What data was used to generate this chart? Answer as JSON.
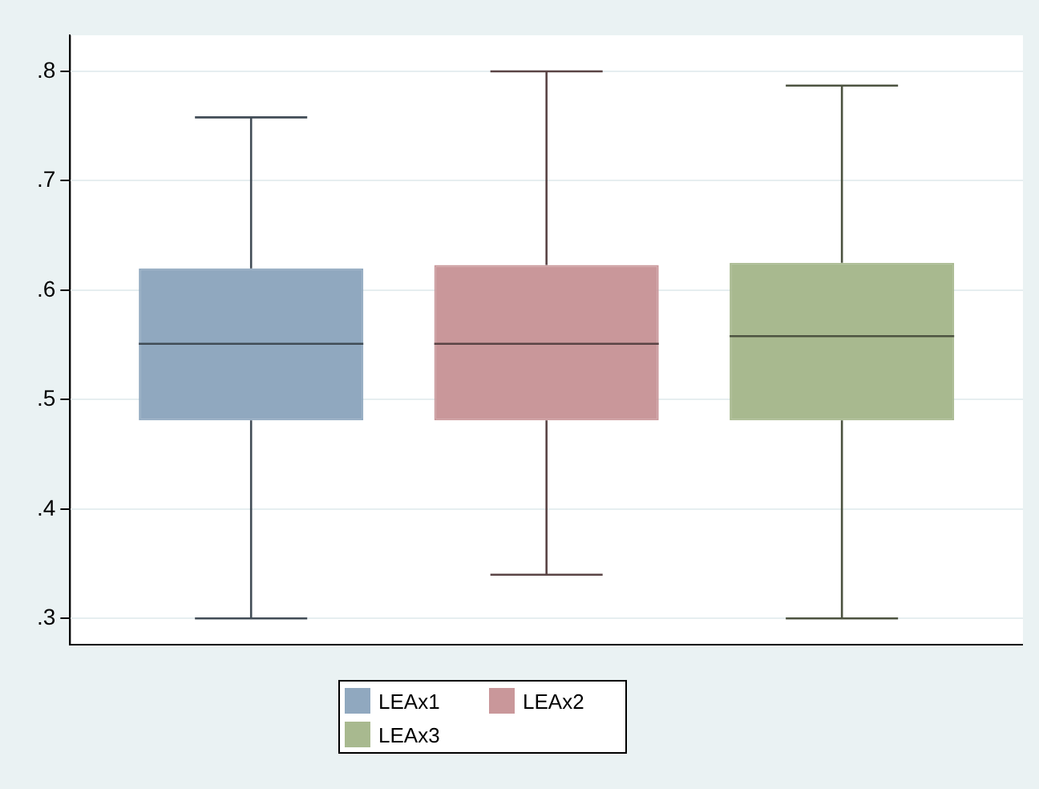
{
  "chart_data": {
    "type": "box",
    "categories": [
      null
    ],
    "series": [
      {
        "name": "LEAx1",
        "color": "#90a8bf",
        "boxes": [
          {
            "low": 0.3,
            "q1": 0.481,
            "median": 0.551,
            "q3": 0.62,
            "high": 0.758
          }
        ]
      },
      {
        "name": "LEAx2",
        "color": "#c9979a",
        "boxes": [
          {
            "low": 0.34,
            "q1": 0.481,
            "median": 0.551,
            "q3": 0.623,
            "high": 0.8
          }
        ]
      },
      {
        "name": "LEAx3",
        "color": "#a8b98f",
        "boxes": [
          {
            "low": 0.3,
            "q1": 0.481,
            "median": 0.558,
            "q3": 0.625,
            "high": 0.787
          }
        ]
      }
    ],
    "ylim": [
      0.276,
      0.833
    ],
    "yticks": [
      {
        "value": 0.3,
        "label": ".3"
      },
      {
        "value": 0.4,
        "label": ".4"
      },
      {
        "value": 0.5,
        "label": ".5"
      },
      {
        "value": 0.6,
        "label": ".6"
      },
      {
        "value": 0.7,
        "label": ".7"
      },
      {
        "value": 0.8,
        "label": ".8"
      }
    ],
    "grid": "y",
    "legend": "bottom"
  }
}
